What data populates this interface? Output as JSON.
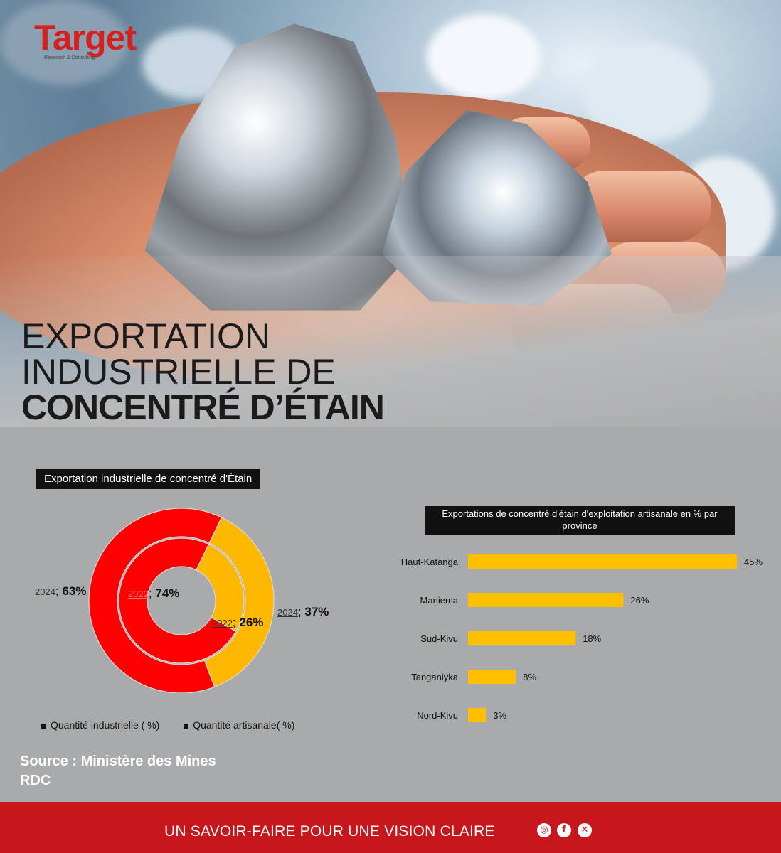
{
  "brand": {
    "logo_text": "Target",
    "logo_sub": "Research & Consulting"
  },
  "title": {
    "line1": "EXPORTATION",
    "line2": "INDUSTRIELLE DE",
    "line3": "CONCENTRÉ D’ÉTAIN"
  },
  "donut": {
    "title": "Exportation industrielle de concentré d'Étain",
    "labels": {
      "outer_industrial": {
        "year": "2024",
        "value": "63%"
      },
      "inner_industrial": {
        "year": "2022",
        "value": "74%"
      },
      "inner_artisanal": {
        "year": "2022",
        "value": "26%"
      },
      "outer_artisanal": {
        "year": "2024",
        "value": "37%"
      }
    },
    "legend": {
      "industrial": "Quantité industrielle ( %)",
      "artisanal": "Quantité artisanale( %)"
    }
  },
  "bars": {
    "title": "Exportations de concentré d'étain d'exploitation artisanale en % par province"
  },
  "source": "Source : Ministère des Mines RDC",
  "footer": {
    "tagline": "UN SAVOIR-FAIRE POUR UNE VISION CLAIRE"
  },
  "social_icons": [
    "instagram-icon",
    "facebook-icon",
    "x-icon"
  ],
  "colors": {
    "industrial": "#ff0000",
    "artisanal": "#ffb800",
    "bar": "#ffc000",
    "footer": "#c8161d"
  },
  "chart_data": [
    {
      "type": "pie",
      "title": "Exportation industrielle de concentré d'Étain",
      "series": [
        {
          "name": "2024",
          "categories": [
            "Quantité industrielle",
            "Quantité artisanale"
          ],
          "values": [
            63,
            37
          ]
        },
        {
          "name": "2022",
          "categories": [
            "Quantité industrielle",
            "Quantité artisanale"
          ],
          "values": [
            74,
            26
          ]
        }
      ],
      "legend": "bottom"
    },
    {
      "type": "bar",
      "orientation": "horizontal",
      "title": "Exportations de concentré d'étain d'exploitation artisanale en % par province",
      "categories": [
        "Haut-Katanga",
        "Maniema",
        "Sud-Kivu",
        "Tanganiyka",
        "Nord-Kivu"
      ],
      "values": [
        45,
        26,
        18,
        8,
        3
      ],
      "value_labels": [
        "45%",
        "26%",
        "18%",
        "8%",
        "3%"
      ],
      "xlim": [
        0,
        45
      ],
      "grid": false
    }
  ]
}
